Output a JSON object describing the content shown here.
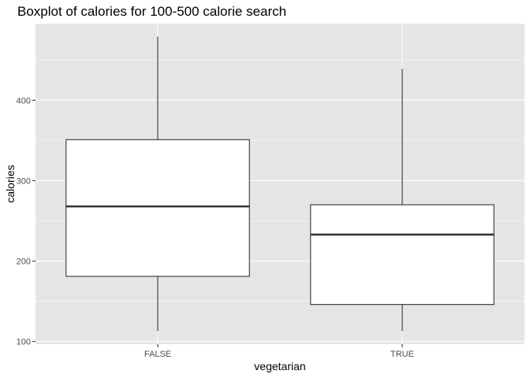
{
  "chart_data": {
    "type": "boxplot",
    "title": "Boxplot of calories for 100-500 calorie search",
    "xlabel": "vegetarian",
    "ylabel": "calories",
    "categories": [
      "FALSE",
      "TRUE"
    ],
    "boxes": [
      {
        "category": "FALSE",
        "whisker_low": 113,
        "q1": 181,
        "median": 268,
        "q3": 351,
        "whisker_high": 479
      },
      {
        "category": "TRUE",
        "whisker_low": 113,
        "q1": 146,
        "median": 233,
        "q3": 270,
        "whisker_high": 439
      }
    ],
    "y_ticks": [
      100,
      200,
      300,
      400
    ],
    "ylim": [
      96.7,
      495.3
    ],
    "grid": true,
    "legend": "none",
    "colors": {
      "panel_background": "#e5e5e5",
      "grid_line": "#ffffff",
      "box_fill": "#ffffff",
      "box_stroke": "#333333",
      "tick_text": "#4d4d4d",
      "tick_mark": "#333333"
    }
  }
}
